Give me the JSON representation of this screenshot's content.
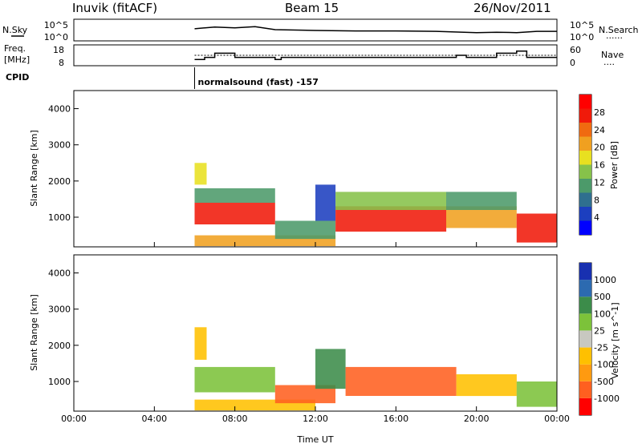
{
  "header": {
    "station": "Inuvik (fitACF)",
    "beam": "Beam 15",
    "date": "26/Nov/2011"
  },
  "panel_labels": {
    "nsky": "N.Sky",
    "nsky_ticks": [
      "10^5",
      "10^0"
    ],
    "nsearch": "N.Search",
    "nsearch_ticks": [
      "10^5",
      "10^0"
    ],
    "freq_line1": "Freq.",
    "freq_line2": "[MHz]",
    "freq_ticks": [
      "18",
      "8"
    ],
    "nave": "Nave",
    "nave_ticks": [
      "60",
      "0"
    ],
    "cpid": "CPID",
    "cpid_text": "normalsound (fast) -157",
    "dots": "......",
    "dots_short": "....",
    "dash": "____"
  },
  "colors": {
    "power": [
      "#0000ff",
      "#1c3fbf",
      "#2f6f8f",
      "#4c9a6a",
      "#86c24a",
      "#e8e020",
      "#f0a020",
      "#f06a10",
      "#f01a0a",
      "#ff0000"
    ],
    "velocity": [
      "#ff0000",
      "#ff6020",
      "#ff9a10",
      "#ffc000",
      "#c8c8c0",
      "#7cc23a",
      "#3c8c4a",
      "#2c6ab0",
      "#1830b0"
    ]
  },
  "chart_data": [
    {
      "type": "heatmap",
      "name": "power",
      "ylabel": "Slant Range [km]",
      "colorbar_label": "Power [dB]",
      "colorbar_ticks": [
        "28",
        "24",
        "20",
        "16",
        "12",
        "8",
        "4"
      ],
      "colorbar_range": [
        0,
        32
      ],
      "x_ticks": [
        "00:00",
        "04:00",
        "08:00",
        "12:00",
        "16:00",
        "20:00",
        "00:00"
      ],
      "y_ticks": [
        "1000",
        "2000",
        "3000",
        "4000"
      ],
      "xlim_hours": [
        0,
        24
      ],
      "ylim_km": [
        180,
        4500
      ],
      "data_start_hour": 6,
      "regions": [
        {
          "x": [
            6.0,
            10.0
          ],
          "y": [
            800,
            1400
          ],
          "value": 28
        },
        {
          "x": [
            6.0,
            10.0
          ],
          "y": [
            1400,
            1800
          ],
          "value": 12
        },
        {
          "x": [
            6.0,
            6.6
          ],
          "y": [
            1900,
            2500
          ],
          "value": 16
        },
        {
          "x": [
            6.0,
            13.0
          ],
          "y": [
            200,
            500
          ],
          "value": 22
        },
        {
          "x": [
            10.0,
            13.0
          ],
          "y": [
            400,
            900
          ],
          "value": 10
        },
        {
          "x": [
            12.0,
            13.0
          ],
          "y": [
            900,
            1900
          ],
          "value": 6
        },
        {
          "x": [
            13.0,
            18.5
          ],
          "y": [
            600,
            1300
          ],
          "value": 27
        },
        {
          "x": [
            13.0,
            18.5
          ],
          "y": [
            1200,
            1700
          ],
          "value": 14
        },
        {
          "x": [
            18.5,
            22.0
          ],
          "y": [
            700,
            1300
          ],
          "value": 22
        },
        {
          "x": [
            18.5,
            22.0
          ],
          "y": [
            1200,
            1700
          ],
          "value": 12
        },
        {
          "x": [
            22.0,
            24.0
          ],
          "y": [
            300,
            1100
          ],
          "value": 26
        }
      ]
    },
    {
      "type": "heatmap",
      "name": "velocity",
      "ylabel": "Slant Range [km]",
      "xlabel": "Time UT",
      "colorbar_label": "Velocity [m s^-1]",
      "colorbar_ticks": [
        "1000",
        "500",
        "100",
        "25",
        "-25",
        "-100",
        "-500",
        "-1000"
      ],
      "x_ticks": [
        "00:00",
        "04:00",
        "08:00",
        "12:00",
        "16:00",
        "20:00",
        "00:00"
      ],
      "y_ticks": [
        "1000",
        "2000",
        "3000",
        "4000"
      ],
      "xlim_hours": [
        0,
        24
      ],
      "ylim_km": [
        180,
        4500
      ],
      "data_start_hour": 6,
      "regions": [
        {
          "x": [
            6.0,
            10.0
          ],
          "y": [
            700,
            1400
          ],
          "value": 100
        },
        {
          "x": [
            6.0,
            6.6
          ],
          "y": [
            1600,
            2500
          ],
          "value": 0
        },
        {
          "x": [
            6.0,
            12.0
          ],
          "y": [
            200,
            500
          ],
          "value": 0
        },
        {
          "x": [
            10.0,
            13.0
          ],
          "y": [
            400,
            900
          ],
          "value": -200
        },
        {
          "x": [
            12.0,
            13.5
          ],
          "y": [
            800,
            1900
          ],
          "value": 600
        },
        {
          "x": [
            13.5,
            19.0
          ],
          "y": [
            600,
            1400
          ],
          "value": -300
        },
        {
          "x": [
            19.0,
            22.0
          ],
          "y": [
            600,
            1200
          ],
          "value": 0
        },
        {
          "x": [
            22.0,
            24.0
          ],
          "y": [
            300,
            1000
          ],
          "value": 100
        }
      ]
    },
    {
      "type": "line",
      "name": "n_sky",
      "xlim_hours": [
        0,
        24
      ],
      "x_hours": [
        6.0,
        7.0,
        8.0,
        9.0,
        10.0,
        12.0,
        14.0,
        16.0,
        18.0,
        20.0,
        21.0,
        22.0,
        23.0,
        24.0
      ],
      "values_log10": [
        2.8,
        3.2,
        3.0,
        3.3,
        2.6,
        2.4,
        2.3,
        2.3,
        2.2,
        1.9,
        2.0,
        1.9,
        2.2,
        2.2
      ]
    },
    {
      "type": "step",
      "name": "freq_mhz",
      "xlim_hours": [
        0,
        24
      ],
      "ylim": [
        8,
        18
      ],
      "steps": [
        [
          6.0,
          11
        ],
        [
          6.5,
          12
        ],
        [
          7.0,
          14
        ],
        [
          8.0,
          12
        ],
        [
          10.0,
          11
        ],
        [
          10.3,
          12
        ],
        [
          19.0,
          13
        ],
        [
          19.5,
          12
        ],
        [
          21.0,
          14
        ],
        [
          22.0,
          15
        ],
        [
          22.5,
          12
        ],
        [
          24.0,
          12
        ]
      ]
    },
    {
      "type": "line",
      "name": "nave",
      "xlim_hours": [
        0,
        24
      ],
      "ylim": [
        0,
        60
      ],
      "x_hours": [
        6.0,
        24.0
      ],
      "values": [
        30,
        30
      ]
    }
  ]
}
